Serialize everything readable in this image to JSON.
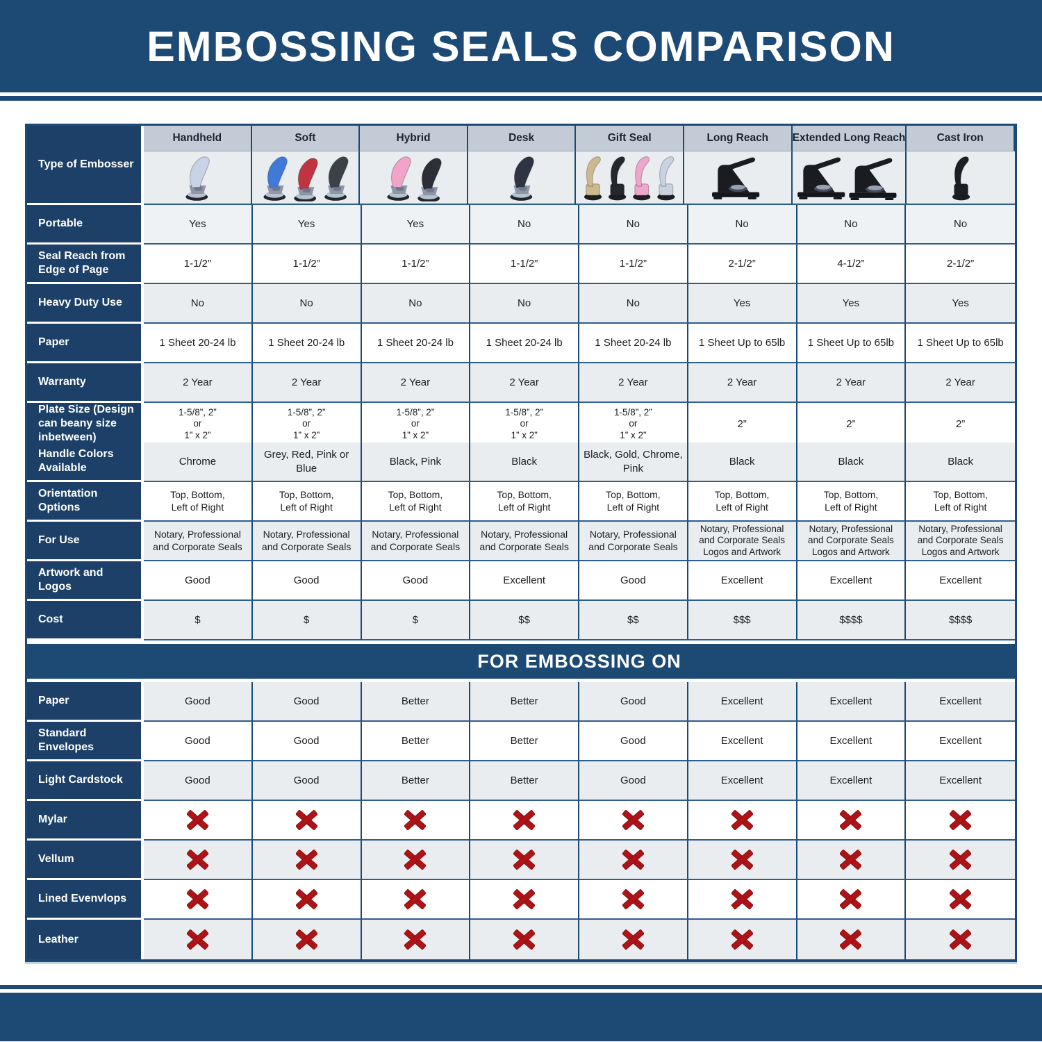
{
  "title": "EMBOSSING SEALS COMPARISON",
  "colors": {
    "banner_navy": "#1d4a75",
    "label_navy": "#1c4068",
    "column_header_gray": "#c3ccd6",
    "row_gray": "#e9edf0",
    "row_white": "#ffffff",
    "x_mark_red": "#ae1317"
  },
  "header": {
    "type_label": "Type of Embosser",
    "columns": [
      "Handheld",
      "Soft",
      "Hybrid",
      "Desk",
      "Gift Seal",
      "Long Reach",
      "Extended Long Reach",
      "Cast Iron"
    ]
  },
  "embossers": [
    {
      "name": "handheld-embosser-image",
      "icon": "plier",
      "colors": [
        "#c9d3e6"
      ]
    },
    {
      "name": "soft-embosser-image",
      "icon": "plier",
      "colors": [
        "#4079d8",
        "#c0343f",
        "#3c4049"
      ]
    },
    {
      "name": "hybrid-embosser-image",
      "icon": "plier",
      "colors": [
        "#f1a3c9",
        "#2c2f38"
      ]
    },
    {
      "name": "desk-embosser-image",
      "icon": "plier",
      "colors": [
        "#2f3442"
      ]
    },
    {
      "name": "gift-seal-embosser-image",
      "icon": "swan",
      "colors": [
        "#cdb98c",
        "#26282e",
        "#efa6cc",
        "#c9d2df"
      ]
    },
    {
      "name": "long-reach-embosser-image",
      "icon": "press",
      "colors": [
        "#1a1c22"
      ]
    },
    {
      "name": "extended-long-reach-embosser-image",
      "icon": "press",
      "colors": [
        "#1a1c22",
        "#1a1c22"
      ]
    },
    {
      "name": "cast-iron-embosser-image",
      "icon": "swan",
      "colors": [
        "#1d1f26"
      ]
    }
  ],
  "spec_rows": [
    {
      "label": "Portable",
      "values": [
        "Yes",
        "Yes",
        "Yes",
        "No",
        "No",
        "No",
        "No",
        "No"
      ]
    },
    {
      "label": "Seal Reach from Edge of Page",
      "values": [
        "1-1/2”",
        "1-1/2”",
        "1-1/2”",
        "1-1/2”",
        "1-1/2”",
        "2-1/2”",
        "4-1/2”",
        "2-1/2”"
      ]
    },
    {
      "label": "Heavy Duty Use",
      "values": [
        "No",
        "No",
        "No",
        "No",
        "No",
        "Yes",
        "Yes",
        "Yes"
      ]
    },
    {
      "label": "Paper",
      "values": [
        "1 Sheet 20-24 lb",
        "1 Sheet 20-24 lb",
        "1 Sheet 20-24 lb",
        "1 Sheet 20-24 lb",
        "1 Sheet 20-24 lb",
        "1 Sheet Up to 65lb",
        "1 Sheet Up to 65lb",
        "1 Sheet Up to 65lb"
      ]
    },
    {
      "label": "Warranty",
      "values": [
        "2 Year",
        "2 Year",
        "2 Year",
        "2 Year",
        "2 Year",
        "2 Year",
        "2 Year",
        "2 Year"
      ]
    },
    {
      "label": "Plate Size (Design can beany size inbetween)",
      "values": [
        "1-5/8”, 2”\nor\n1” x 2”",
        "1-5/8”, 2”\nor\n1” x 2”",
        "1-5/8”, 2”\nor\n1” x 2”",
        "1-5/8”, 2”\nor\n1” x 2”",
        "1-5/8”, 2”\nor\n1” x 2”",
        "2”",
        "2”",
        "2”"
      ]
    },
    {
      "label": "Handle Colors Available",
      "values": [
        "Chrome",
        "Grey, Red, Pink or Blue",
        "Black, Pink",
        "Black",
        "Black, Gold, Chrome, Pink",
        "Black",
        "Black",
        "Black"
      ]
    },
    {
      "label": "Orientation Options",
      "values": [
        "Top, Bottom,\nLeft of Right",
        "Top, Bottom,\nLeft of Right",
        "Top, Bottom,\nLeft of Right",
        "Top, Bottom,\nLeft of Right",
        "Top, Bottom,\nLeft of Right",
        "Top, Bottom,\nLeft of Right",
        "Top, Bottom,\nLeft of Right",
        "Top, Bottom,\nLeft of Right"
      ]
    },
    {
      "label": "For Use",
      "values": [
        "Notary, Professional\nand Corporate Seals",
        "Notary, Professional\nand Corporate Seals",
        "Notary, Professional\nand Corporate Seals",
        "Notary, Professional\nand Corporate Seals",
        "Notary, Professional\nand Corporate Seals",
        "Notary, Professional\nand Corporate Seals\nLogos and Artwork",
        "Notary, Professional\nand Corporate Seals\nLogos and Artwork",
        "Notary, Professional\nand Corporate Seals\nLogos and Artwork"
      ]
    },
    {
      "label": "Artwork and Logos",
      "values": [
        "Good",
        "Good",
        "Good",
        "Excellent",
        "Good",
        "Excellent",
        "Excellent",
        "Excellent"
      ]
    },
    {
      "label": "Cost",
      "values": [
        "$",
        "$",
        "$",
        "$$",
        "$$",
        "$$$",
        "$$$$",
        "$$$$"
      ]
    }
  ],
  "embossing_section": {
    "header": "FOR EMBOSSING ON",
    "rows": [
      {
        "label": "Paper",
        "values": [
          "Good",
          "Good",
          "Better",
          "Better",
          "Good",
          "Excellent",
          "Excellent",
          "Excellent"
        ]
      },
      {
        "label": "Standard Envelopes",
        "values": [
          "Good",
          "Good",
          "Better",
          "Better",
          "Good",
          "Excellent",
          "Excellent",
          "Excellent"
        ]
      },
      {
        "label": "Light Cardstock",
        "values": [
          "Good",
          "Good",
          "Better",
          "Better",
          "Good",
          "Excellent",
          "Excellent",
          "Excellent"
        ]
      },
      {
        "label": "Mylar",
        "type": "x",
        "x_icon": "red-x-icon"
      },
      {
        "label": "Vellum",
        "type": "x",
        "x_icon": "red-x-icon"
      },
      {
        "label": "Lined Evenvlops",
        "type": "x",
        "x_icon": "red-x-icon"
      },
      {
        "label": "Leather",
        "type": "x",
        "x_icon": "red-x-icon"
      }
    ]
  }
}
